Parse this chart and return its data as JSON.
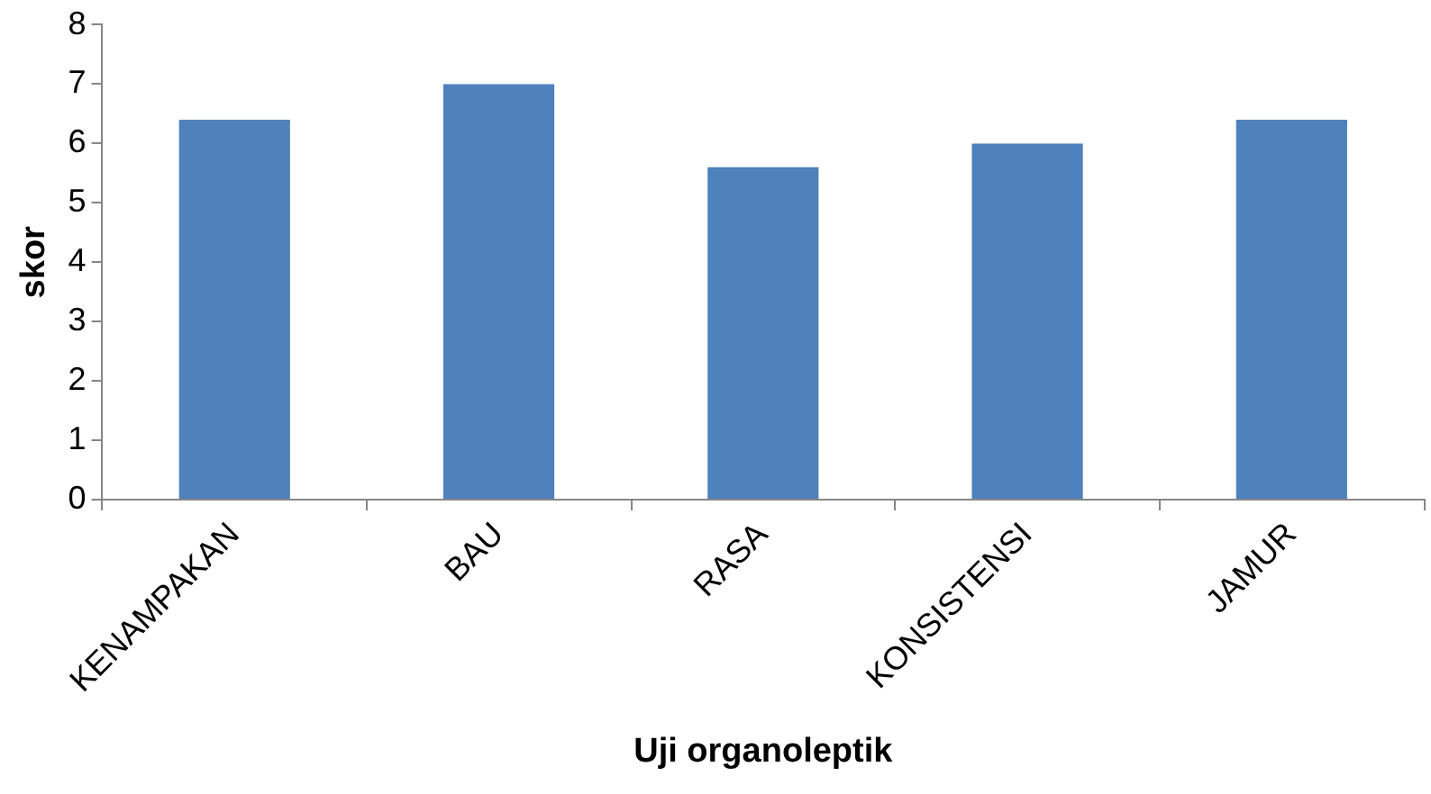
{
  "chart_data": {
    "type": "bar",
    "xlabel": "Uji organoleptik",
    "ylabel": "skor",
    "categories": [
      "KENAMPAKAN",
      "BAU",
      "RASA",
      "KONSISTENSI",
      "JAMUR"
    ],
    "values": [
      6.4,
      7.0,
      5.6,
      6.0,
      6.4
    ],
    "color": "#4f81bd",
    "ylim": [
      0,
      8
    ],
    "yticks": [
      0,
      1,
      2,
      3,
      4,
      5,
      6,
      7,
      8
    ],
    "grid": false,
    "legend": false
  }
}
